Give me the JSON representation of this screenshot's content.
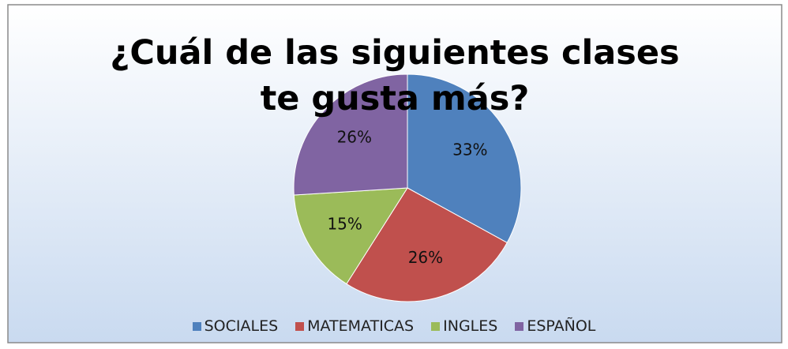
{
  "chart_data": {
    "type": "pie",
    "title": "¿Cuál de las siguientes clases te gusta más?",
    "categories": [
      "SOCIALES",
      "MATEMATICAS",
      "INGLES",
      "ESPAÑOL"
    ],
    "values": [
      33,
      26,
      15,
      26
    ],
    "value_labels": [
      "33%",
      "26%",
      "15%",
      "26%"
    ],
    "colors": [
      "#4f81bd",
      "#c0504d",
      "#9bbb59",
      "#8064a2"
    ],
    "legend": "bottom"
  }
}
